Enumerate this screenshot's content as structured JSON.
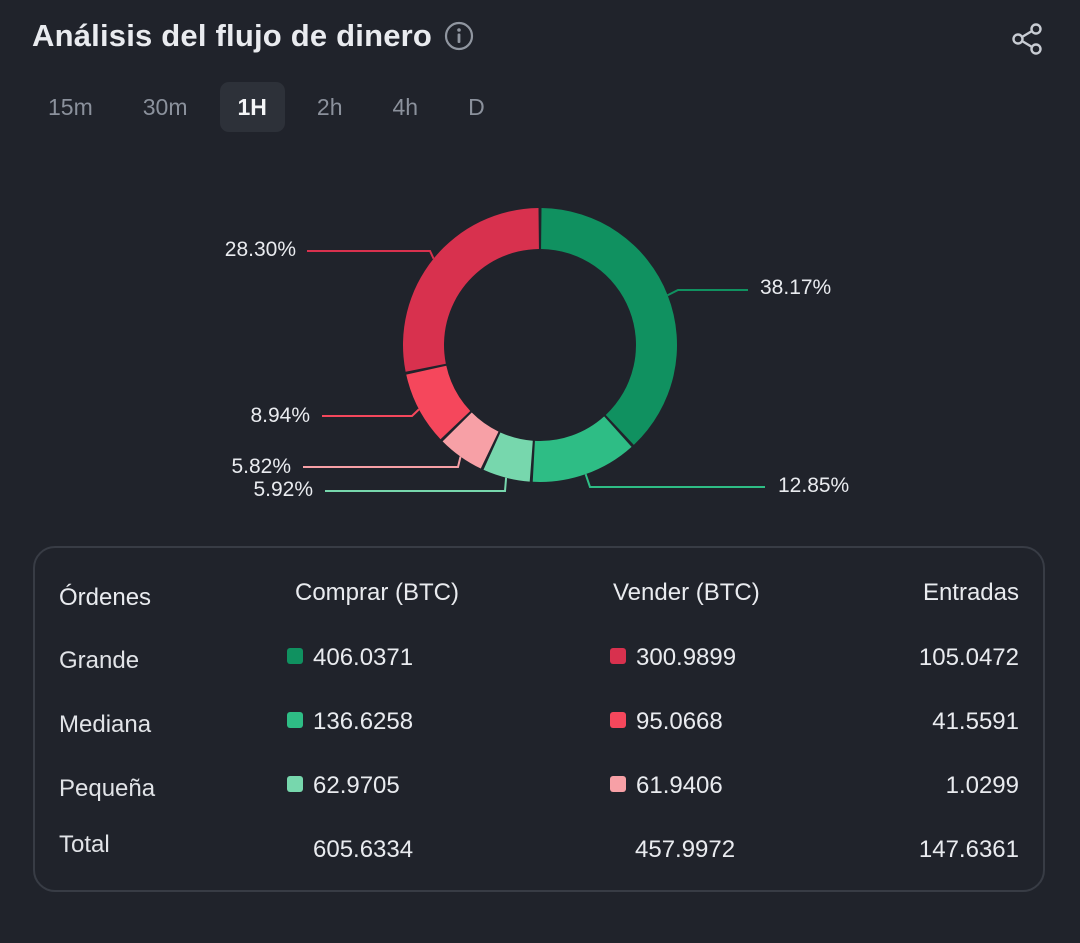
{
  "header": {
    "title": "Análisis del flujo de dinero"
  },
  "tabs": [
    {
      "label": "15m",
      "active": false
    },
    {
      "label": "30m",
      "active": false
    },
    {
      "label": "1H",
      "active": true
    },
    {
      "label": "2h",
      "active": false
    },
    {
      "label": "4h",
      "active": false
    },
    {
      "label": "D",
      "active": false
    }
  ],
  "colors": {
    "buy_large": "#109160",
    "buy_medium": "#2ebd85",
    "buy_small": "#77d7ad",
    "sell_large": "#d8314e",
    "sell_medium": "#f5475c",
    "sell_small": "#f7a0a6"
  },
  "chart_data": {
    "type": "pie",
    "slices": [
      {
        "label": "38.17%",
        "value": 38.17,
        "color": "#109160"
      },
      {
        "label": "12.85%",
        "value": 12.85,
        "color": "#2ebd85"
      },
      {
        "label": "5.92%",
        "value": 5.92,
        "color": "#77d7ad"
      },
      {
        "label": "5.82%",
        "value": 5.82,
        "color": "#f7a0a6"
      },
      {
        "label": "8.94%",
        "value": 8.94,
        "color": "#f5475c"
      },
      {
        "label": "28.30%",
        "value": 28.3,
        "color": "#d8314e"
      }
    ]
  },
  "table": {
    "headers": {
      "orders": "Órdenes",
      "buy": "Comprar (BTC)",
      "sell": "Vender (BTC)",
      "inflow": "Entradas"
    },
    "rows": [
      {
        "label": "Grande",
        "buy": "406.0371",
        "sell": "300.9899",
        "inflow": "105.0472",
        "buy_color": "#109160",
        "sell_color": "#d8314e"
      },
      {
        "label": "Mediana",
        "buy": "136.6258",
        "sell": "95.0668",
        "inflow": "41.5591",
        "buy_color": "#2ebd85",
        "sell_color": "#f5475c"
      },
      {
        "label": "Pequeña",
        "buy": "62.9705",
        "sell": "61.9406",
        "inflow": "1.0299",
        "buy_color": "#77d7ad",
        "sell_color": "#f7a0a6"
      }
    ],
    "total": {
      "label": "Total",
      "buy": "605.6334",
      "sell": "457.9972",
      "inflow": "147.6361"
    }
  }
}
